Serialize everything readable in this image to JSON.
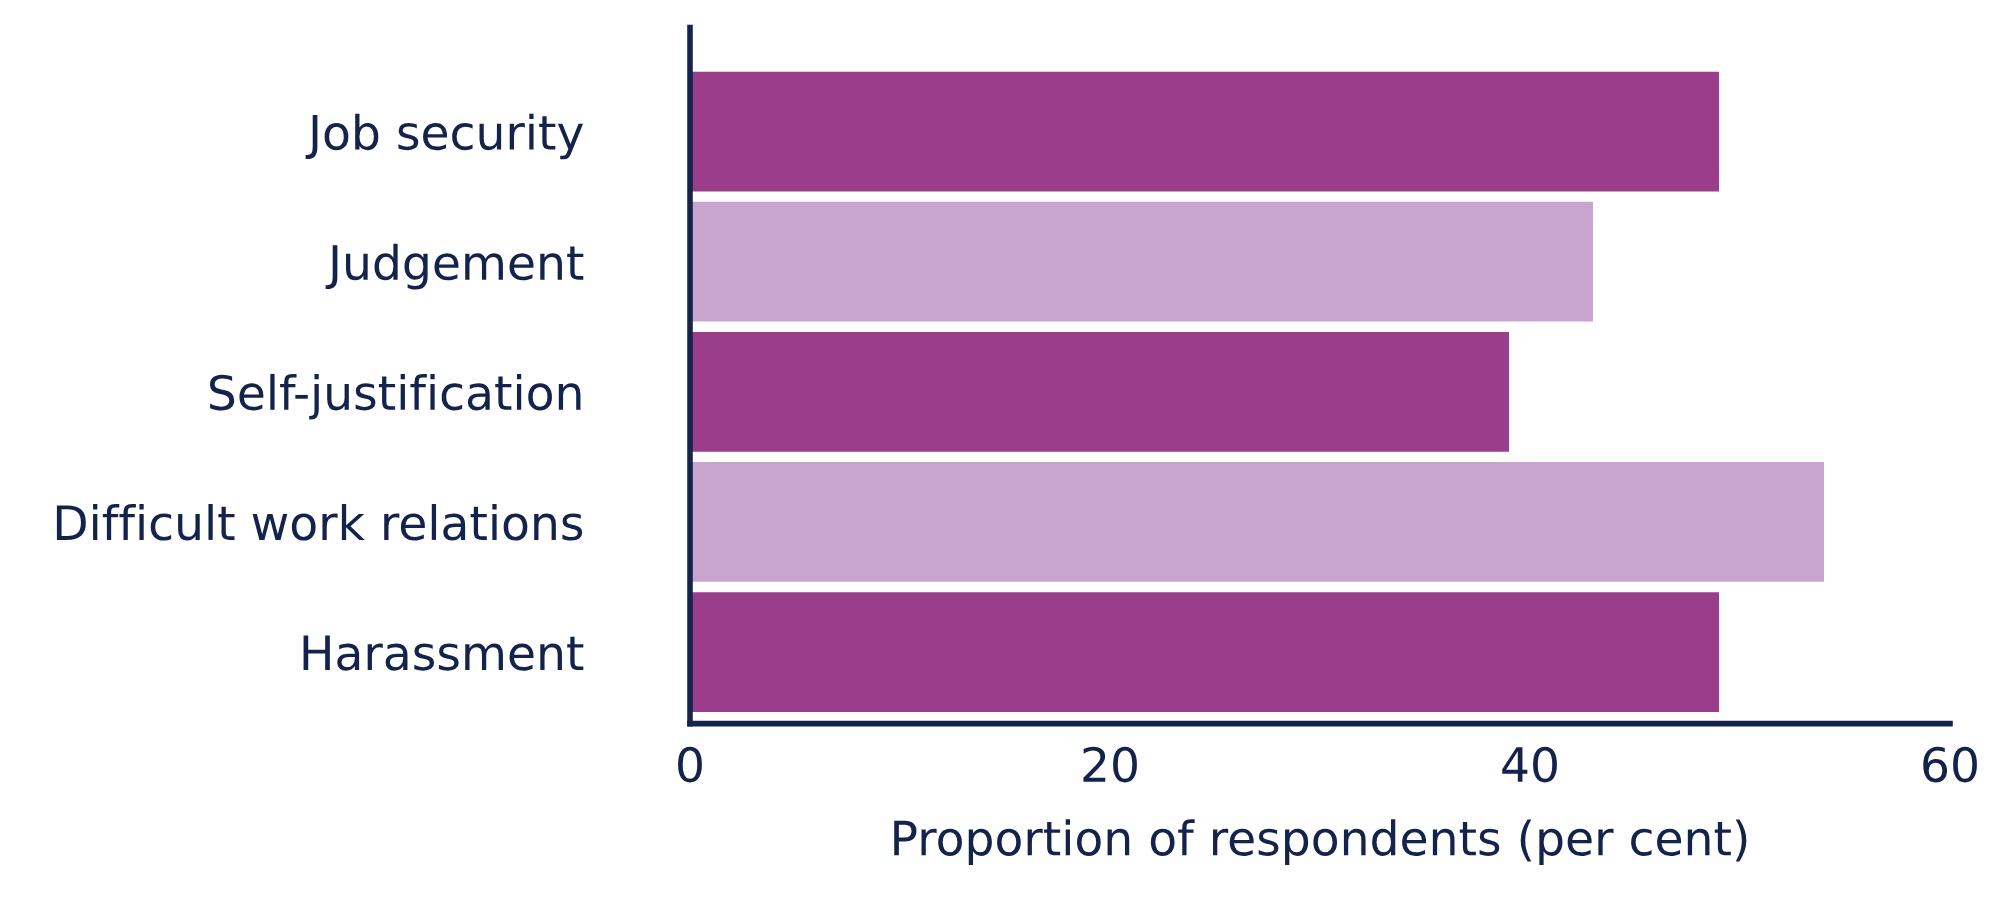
{
  "chart_data": {
    "type": "bar",
    "orientation": "horizontal",
    "xlabel": "Proportion of respondents (per cent)",
    "categories": [
      "Job security",
      "Judgement",
      "Self-justification",
      "Difficult work relations",
      "Harassment"
    ],
    "values": [
      49,
      43,
      39,
      54,
      49
    ],
    "colors": [
      "#9a3d8b",
      "#c8a5cf",
      "#9a3d8b",
      "#c8a5cf",
      "#9a3d8b"
    ],
    "xlim": [
      0,
      60
    ],
    "xticks": [
      0,
      20,
      40,
      60
    ],
    "grid": false,
    "legend": false
  }
}
